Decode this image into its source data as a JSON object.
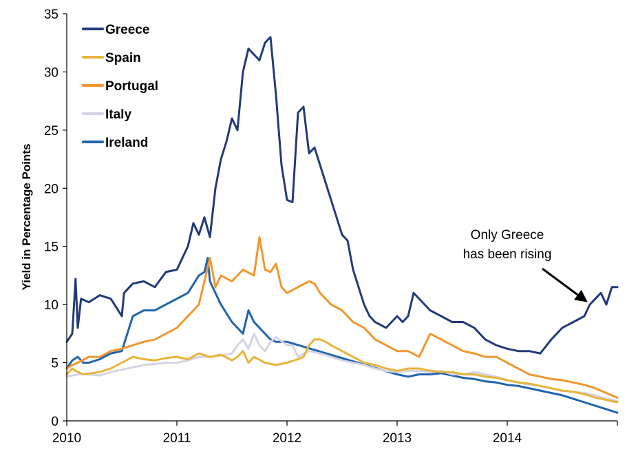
{
  "chart_data": {
    "type": "line",
    "title": "",
    "xlabel": "",
    "ylabel": "Yield in Percentage Points",
    "xlim": [
      2010,
      2015
    ],
    "ylim": [
      0,
      35
    ],
    "xticks": [
      "2010",
      "2011",
      "2012",
      "2013",
      "2014"
    ],
    "yticks": [
      "0",
      "5",
      "10",
      "15",
      "20",
      "25",
      "30",
      "35"
    ],
    "grid": false,
    "legend_position": "top-left",
    "annotation": {
      "lines": [
        "Only Greece",
        "has been rising"
      ],
      "points_to": {
        "x": 2014.73,
        "y": 10.2
      }
    },
    "series": [
      {
        "name": "Greece",
        "color": "#223a7a",
        "x": [
          2010.0,
          2010.05,
          2010.08,
          2010.1,
          2010.13,
          2010.2,
          2010.3,
          2010.4,
          2010.5,
          2010.52,
          2010.6,
          2010.7,
          2010.8,
          2010.9,
          2011.0,
          2011.1,
          2011.15,
          2011.2,
          2011.25,
          2011.3,
          2011.35,
          2011.4,
          2011.45,
          2011.5,
          2011.55,
          2011.6,
          2011.65,
          2011.7,
          2011.75,
          2011.8,
          2011.85,
          2011.88,
          2011.9,
          2011.95,
          2012.0,
          2012.05,
          2012.1,
          2012.15,
          2012.2,
          2012.25,
          2012.3,
          2012.4,
          2012.5,
          2012.55,
          2012.6,
          2012.65,
          2012.7,
          2012.75,
          2012.8,
          2012.9,
          2013.0,
          2013.05,
          2013.1,
          2013.15,
          2013.2,
          2013.25,
          2013.3,
          2013.4,
          2013.5,
          2013.6,
          2013.7,
          2013.8,
          2013.9,
          2014.0,
          2014.1,
          2014.2,
          2014.3,
          2014.4,
          2014.5,
          2014.6,
          2014.7,
          2014.75,
          2014.8,
          2014.85,
          2014.9,
          2014.95,
          2015.0
        ],
        "values": [
          6.8,
          7.5,
          12.2,
          8.0,
          10.5,
          10.2,
          10.8,
          10.5,
          9.0,
          11.0,
          11.8,
          12.0,
          11.5,
          12.8,
          13.0,
          15.0,
          17.0,
          16.0,
          17.5,
          15.8,
          20.0,
          22.5,
          24.0,
          26.0,
          25.0,
          30.0,
          32.0,
          31.5,
          31.0,
          32.5,
          33.0,
          30.0,
          28.0,
          22.0,
          19.0,
          18.8,
          26.5,
          27.0,
          23.0,
          23.5,
          22.0,
          19.0,
          16.0,
          15.5,
          13.0,
          11.5,
          10.0,
          9.0,
          8.5,
          8.0,
          9.0,
          8.5,
          9.0,
          11.0,
          10.5,
          10.0,
          9.5,
          9.0,
          8.5,
          8.5,
          8.0,
          7.0,
          6.5,
          6.2,
          6.0,
          6.0,
          5.8,
          7.0,
          8.0,
          8.5,
          9.0,
          10.0,
          10.5,
          11.0,
          10.0,
          11.5,
          11.5
        ]
      },
      {
        "name": "Spain",
        "color": "#e8b43a",
        "x": [
          2010.0,
          2010.05,
          2010.08,
          2010.15,
          2010.3,
          2010.4,
          2010.5,
          2010.6,
          2010.7,
          2010.8,
          2010.9,
          2011.0,
          2011.1,
          2011.2,
          2011.3,
          2011.4,
          2011.5,
          2011.55,
          2011.6,
          2011.65,
          2011.7,
          2011.8,
          2011.9,
          2012.0,
          2012.1,
          2012.15,
          2012.2,
          2012.25,
          2012.3,
          2012.35,
          2012.4,
          2012.5,
          2012.6,
          2012.7,
          2012.8,
          2012.9,
          2013.0,
          2013.1,
          2013.2,
          2013.3,
          2013.4,
          2013.5,
          2013.6,
          2013.7,
          2013.8,
          2013.9,
          2014.0,
          2014.1,
          2014.2,
          2014.3,
          2014.4,
          2014.5,
          2014.6,
          2014.7,
          2014.8,
          2014.9,
          2015.0
        ],
        "values": [
          4.0,
          4.5,
          4.3,
          4.0,
          4.2,
          4.5,
          5.0,
          5.5,
          5.3,
          5.2,
          5.4,
          5.5,
          5.3,
          5.8,
          5.5,
          5.7,
          5.2,
          5.5,
          6.0,
          5.0,
          5.5,
          5.0,
          4.8,
          5.0,
          5.3,
          5.5,
          6.5,
          7.0,
          7.0,
          6.8,
          6.5,
          6.0,
          5.5,
          5.0,
          4.8,
          4.5,
          4.3,
          4.5,
          4.5,
          4.3,
          4.2,
          4.2,
          4.0,
          4.0,
          3.8,
          3.7,
          3.5,
          3.3,
          3.2,
          3.0,
          2.8,
          2.6,
          2.5,
          2.3,
          2.0,
          1.8,
          1.6
        ]
      },
      {
        "name": "Portugal",
        "color": "#f0972e",
        "x": [
          2010.0,
          2010.05,
          2010.1,
          2010.2,
          2010.3,
          2010.4,
          2010.5,
          2010.6,
          2010.7,
          2010.8,
          2010.9,
          2011.0,
          2011.1,
          2011.2,
          2011.25,
          2011.3,
          2011.35,
          2011.4,
          2011.5,
          2011.6,
          2011.7,
          2011.75,
          2011.8,
          2011.85,
          2011.9,
          2011.95,
          2012.0,
          2012.1,
          2012.2,
          2012.25,
          2012.3,
          2012.4,
          2012.5,
          2012.6,
          2012.7,
          2012.8,
          2012.9,
          2013.0,
          2013.1,
          2013.2,
          2013.3,
          2013.4,
          2013.5,
          2013.6,
          2013.7,
          2013.8,
          2013.9,
          2014.0,
          2014.1,
          2014.2,
          2014.3,
          2014.4,
          2014.5,
          2014.6,
          2014.7,
          2014.8,
          2014.9,
          2015.0
        ],
        "values": [
          4.5,
          4.8,
          5.0,
          5.5,
          5.5,
          6.0,
          6.2,
          6.5,
          6.8,
          7.0,
          7.5,
          8.0,
          9.0,
          10.0,
          12.0,
          14.0,
          11.5,
          12.5,
          12.0,
          13.0,
          12.5,
          15.8,
          13.0,
          12.8,
          13.5,
          11.5,
          11.0,
          11.5,
          12.0,
          11.8,
          11.0,
          10.0,
          9.5,
          8.5,
          8.0,
          7.0,
          6.5,
          6.0,
          6.0,
          5.5,
          7.5,
          7.0,
          6.5,
          6.0,
          5.8,
          5.5,
          5.5,
          5.0,
          4.5,
          4.0,
          3.8,
          3.6,
          3.5,
          3.3,
          3.1,
          2.8,
          2.4,
          2.0
        ]
      },
      {
        "name": "Italy",
        "color": "#d4d4e6",
        "x": [
          2010.0,
          2010.1,
          2010.2,
          2010.3,
          2010.4,
          2010.5,
          2010.6,
          2010.7,
          2010.8,
          2010.9,
          2011.0,
          2011.1,
          2011.2,
          2011.3,
          2011.4,
          2011.5,
          2011.55,
          2011.6,
          2011.65,
          2011.7,
          2011.75,
          2011.8,
          2011.85,
          2011.9,
          2012.0,
          2012.05,
          2012.1,
          2012.2,
          2012.3,
          2012.4,
          2012.5,
          2012.6,
          2012.7,
          2012.8,
          2012.9,
          2013.0,
          2013.1,
          2013.2,
          2013.3,
          2013.4,
          2013.5,
          2013.6,
          2013.7,
          2013.8,
          2013.9,
          2014.0,
          2014.1,
          2014.2,
          2014.3,
          2014.4,
          2014.5,
          2014.6,
          2014.7,
          2014.8,
          2014.9,
          2015.0
        ],
        "values": [
          3.8,
          4.0,
          4.0,
          3.9,
          4.2,
          4.4,
          4.6,
          4.8,
          4.9,
          5.0,
          5.0,
          5.2,
          5.5,
          5.5,
          5.6,
          5.8,
          6.5,
          7.0,
          6.2,
          7.5,
          6.5,
          6.0,
          6.8,
          7.2,
          6.5,
          6.5,
          5.5,
          6.0,
          5.8,
          5.5,
          5.2,
          5.0,
          4.8,
          4.5,
          4.3,
          4.2,
          4.3,
          4.3,
          4.2,
          4.3,
          4.0,
          4.0,
          4.2,
          4.0,
          3.8,
          3.5,
          3.3,
          3.1,
          3.0,
          2.8,
          2.6,
          2.5,
          2.4,
          2.2,
          1.9,
          1.7
        ]
      },
      {
        "name": "Ireland",
        "color": "#1f64ad",
        "x": [
          2010.0,
          2010.05,
          2010.1,
          2010.15,
          2010.2,
          2010.3,
          2010.4,
          2010.5,
          2010.6,
          2010.7,
          2010.8,
          2010.9,
          2011.0,
          2011.1,
          2011.2,
          2011.25,
          2011.28,
          2011.3,
          2011.35,
          2011.4,
          2011.5,
          2011.55,
          2011.6,
          2011.65,
          2011.7,
          2011.75,
          2011.8,
          2011.85,
          2011.9,
          2012.0,
          2013.0,
          2013.1,
          2013.2,
          2013.3,
          2013.4,
          2013.5,
          2013.6,
          2013.7,
          2013.8,
          2013.9,
          2014.0,
          2014.1,
          2014.2,
          2014.3,
          2014.4,
          2014.5,
          2014.6,
          2014.7,
          2014.8,
          2014.9,
          2015.0
        ],
        "values": [
          4.5,
          5.2,
          5.5,
          5.0,
          5.0,
          5.3,
          5.8,
          6.0,
          9.0,
          9.5,
          9.5,
          10.0,
          10.5,
          11.0,
          12.5,
          12.8,
          14.0,
          12.0,
          11.0,
          10.0,
          8.5,
          8.0,
          7.5,
          9.5,
          8.5,
          8.0,
          7.5,
          7.0,
          6.8,
          6.8,
          4.0,
          3.8,
          4.0,
          4.0,
          4.1,
          3.9,
          3.7,
          3.6,
          3.4,
          3.3,
          3.1,
          3.0,
          2.8,
          2.6,
          2.4,
          2.2,
          1.9,
          1.6,
          1.3,
          1.0,
          0.7
        ]
      }
    ]
  }
}
